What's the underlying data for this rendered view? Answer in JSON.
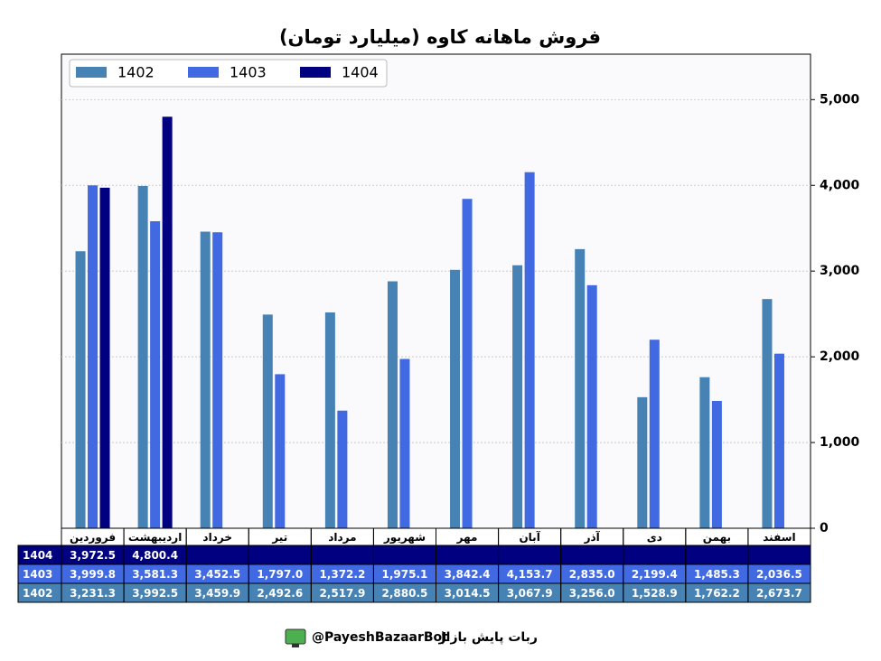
{
  "chart_data": {
    "type": "bar",
    "title": "فروش ماهانه کاوه (میلیارد تومان)",
    "categories": [
      "فروردین",
      "اردیبهشت",
      "خرداد",
      "تیر",
      "مرداد",
      "شهریور",
      "مهر",
      "آبان",
      "آذر",
      "دی",
      "بهمن",
      "اسفند"
    ],
    "series": [
      {
        "name": "1402",
        "color": "#4682b4",
        "values": [
          3231.3,
          3992.5,
          3459.9,
          2492.6,
          2517.9,
          2880.5,
          3014.5,
          3067.9,
          3256.0,
          1528.9,
          1762.2,
          2673.7
        ],
        "value_labels": [
          "3,231.3",
          "3,992.5",
          "3,459.9",
          "2,492.6",
          "2,517.9",
          "2,880.5",
          "3,014.5",
          "3,067.9",
          "3,256.0",
          "1,528.9",
          "1,762.2",
          "2,673.7"
        ]
      },
      {
        "name": "1403",
        "color": "#4169e1",
        "values": [
          3999.8,
          3581.3,
          3452.5,
          1797.0,
          1372.2,
          1975.1,
          3842.4,
          4153.7,
          2835.0,
          2199.4,
          1485.3,
          2036.5
        ],
        "value_labels": [
          "3,999.8",
          "3,581.3",
          "3,452.5",
          "1,797.0",
          "1,372.2",
          "1,975.1",
          "3,842.4",
          "4,153.7",
          "2,835.0",
          "2,199.4",
          "1,485.3",
          "2,036.5"
        ]
      },
      {
        "name": "1404",
        "color": "#000080",
        "values": [
          3972.5,
          4800.4,
          null,
          null,
          null,
          null,
          null,
          null,
          null,
          null,
          null,
          null
        ],
        "value_labels": [
          "3,972.5",
          "4,800.4",
          null,
          null,
          null,
          null,
          null,
          null,
          null,
          null,
          null,
          null
        ]
      }
    ],
    "ylim": [
      0,
      5530
    ],
    "yticks": [
      0,
      {
        "value": 1000,
        "label": "1,000"
      },
      {
        "value": 2000,
        "label": "2,000"
      },
      {
        "value": 3000,
        "label": "3,000"
      },
      {
        "value": 4000,
        "label": "4,000"
      },
      {
        "value": 5000,
        "label": "5,000"
      }
    ],
    "grid": true,
    "legend": "upper-left"
  },
  "footer": {
    "handle": "@PayeshBazaarBot",
    "separator": "|",
    "name": "ربات پایش بازار"
  }
}
